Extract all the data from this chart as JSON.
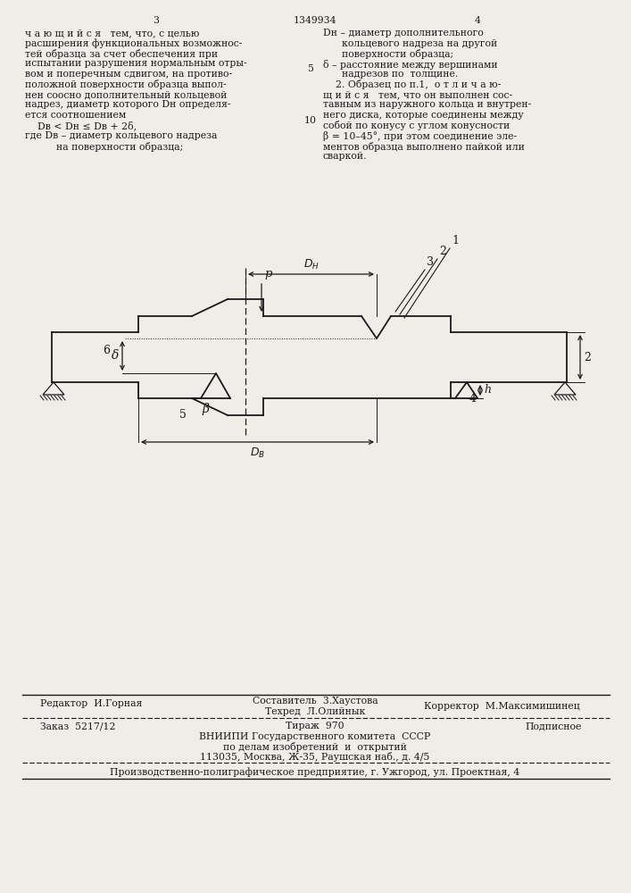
{
  "bg_color": "#f0ede8",
  "line_color": "#1a1a1a",
  "page_num_left": "3",
  "page_num_center": "1349934",
  "page_num_right": "4",
  "footer_line1_left": "Редактор  И.Горная",
  "footer_line1_center_top": "Составитель  3.Хаустова",
  "footer_line1_center_bot": "Техред  Л.Олийнык",
  "footer_line1_right": "Корректор  М.Максимишинец",
  "footer_order": "Заказ  5217/12",
  "footer_tirazh": "Тираж  970",
  "footer_podpisnoe": "Подписное",
  "footer_vniip": "ВНИИПИ Государственного комитета  СССР",
  "footer_po_delam": "по делам изобретений  и  открытий",
  "footer_address": "113035, Москва, Ж-35, Раушская наб., д. 4/5",
  "footer_ughorod": "Производственно-полиграфическое предприятие, г. Ужгород, ул. Проектная, 4"
}
